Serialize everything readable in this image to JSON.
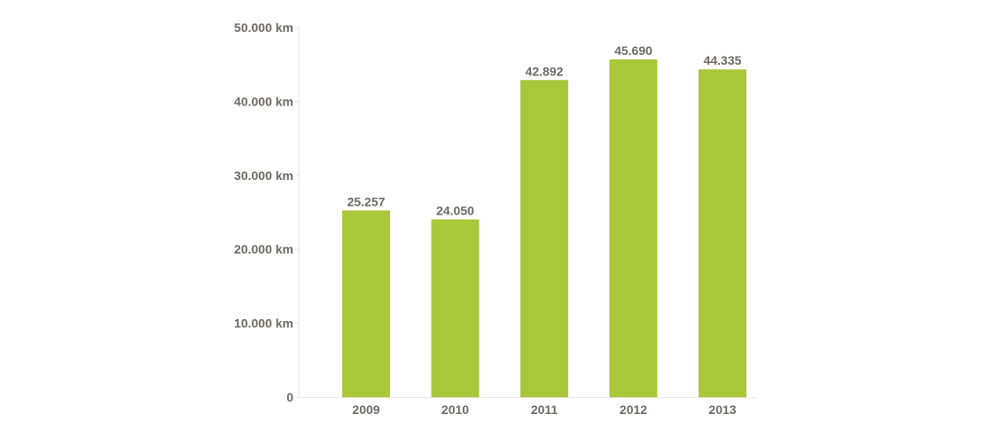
{
  "colors": {
    "bar": "#a8c83a",
    "text": "#6e6862",
    "axis": "#e6e6e6"
  },
  "chart_data": {
    "type": "bar",
    "title": "",
    "xlabel": "",
    "ylabel": "",
    "categories": [
      "2009",
      "2010",
      "2011",
      "2012",
      "2013"
    ],
    "values": [
      25257,
      24050,
      42892,
      45690,
      44335
    ],
    "value_labels": [
      "25.257",
      "24.050",
      "42.892",
      "45.690",
      "44.335"
    ],
    "ylim": [
      0,
      50000
    ],
    "yticks": [
      0,
      10000,
      20000,
      30000,
      40000,
      50000
    ],
    "ytick_labels": [
      "0",
      "10.000 km",
      "20.000 km",
      "30.000 km",
      "40.000 km",
      "50.000 km"
    ],
    "grid": false,
    "legend": "none"
  }
}
